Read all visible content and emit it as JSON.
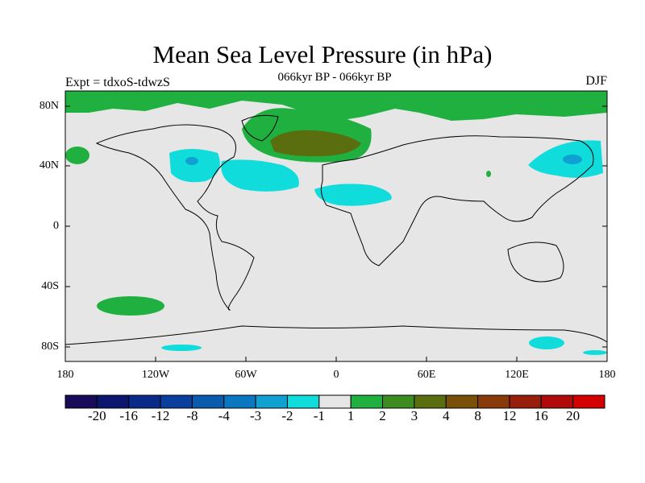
{
  "title": "Mean Sea Level Pressure (in hPa)",
  "left_label": "Expt = tdxoS-tdwzS",
  "center_label": "066kyr BP - 066kyr BP",
  "right_label": "DJF",
  "lat_ticks": [
    "80N",
    "40N",
    "0",
    "40S",
    "80S"
  ],
  "lon_ticks": [
    "180",
    "120W",
    "60W",
    "0",
    "60E",
    "120E",
    "180"
  ],
  "colorbar": {
    "colors": [
      "#1a0a5a",
      "#0c166e",
      "#0a2a8a",
      "#0a3f9e",
      "#0a5aae",
      "#0a78c0",
      "#10a0d2",
      "#10dcdc",
      "#e6e6e6",
      "#20b040",
      "#3c8c20",
      "#5a6e10",
      "#78500a",
      "#8a3a0a",
      "#961e0a",
      "#b00a0a",
      "#d40000"
    ],
    "labels": [
      "-20",
      "-16",
      "-12",
      "-8",
      "-4",
      "-3",
      "-2",
      "-1",
      "1",
      "2",
      "3",
      "4",
      "8",
      "12",
      "16",
      "20"
    ]
  },
  "legend_colors": {
    "background": "#e6e6e6",
    "light_green": "#20b040",
    "dark_olive": "#5a6e10",
    "cyan": "#10dcdc",
    "blue": "#10a0d2"
  }
}
